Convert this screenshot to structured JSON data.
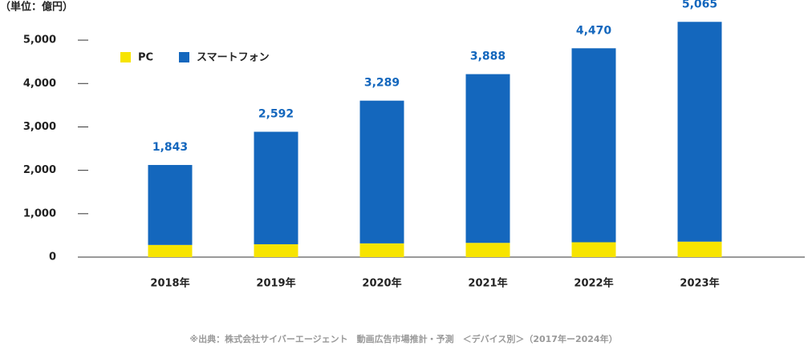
{
  "chart_data": {
    "type": "stacked_bar",
    "unit_label": "（単位：億円）",
    "source": "※出典：株式会社サイバーエージェント　動画広告市場推計・予測　＜デバイス別＞（2017年ー2024年）",
    "categories": [
      "2018年",
      "2019年",
      "2020年",
      "2021年",
      "2022年",
      "2023年"
    ],
    "series": [
      {
        "name": "PC",
        "color": "#f7e400",
        "values": [
          280,
          296,
          316,
          328,
          342,
          356
        ]
      },
      {
        "name": "スマートフォン",
        "color": "#1467bd",
        "values": [
          1843,
          2592,
          3289,
          3888,
          4470,
          5065
        ],
        "value_labels": [
          "1,843",
          "2,592",
          "3,289",
          "3,888",
          "4,470",
          "5,065"
        ]
      }
    ],
    "ylim": [
      0,
      5500
    ],
    "yticks": [
      0,
      {
        "value": 1000,
        "label": "1,000"
      },
      {
        "value": 2000,
        "label": "2,000"
      },
      {
        "value": 3000,
        "label": "3,000"
      },
      {
        "value": 4000,
        "label": "4,000"
      },
      {
        "value": 5000,
        "label": "5,000"
      }
    ],
    "legend": "top-left"
  }
}
